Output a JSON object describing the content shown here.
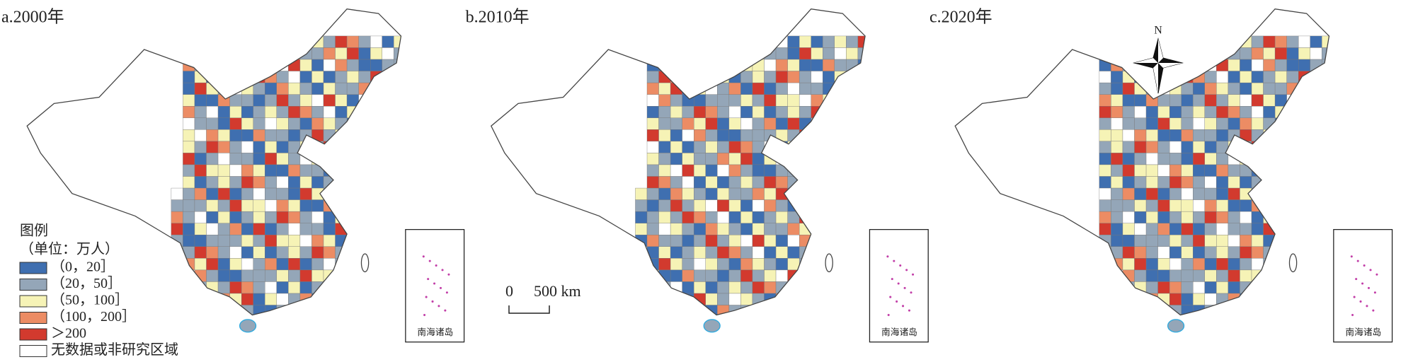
{
  "panels": [
    {
      "title": "a.2000年",
      "inset_label": "南海诸岛"
    },
    {
      "title": "b.2010年",
      "inset_label": "南海诸岛"
    },
    {
      "title": "c.2020年",
      "inset_label": "南海诸岛"
    }
  ],
  "legend": {
    "title": "图例",
    "unit": "（单位：万人）",
    "items": [
      {
        "label": "（0，20］",
        "color": "#3f6fb0"
      },
      {
        "label": "（20，50］",
        "color": "#94a6b8"
      },
      {
        "label": "（50，100］",
        "color": "#f6f3b6"
      },
      {
        "label": "（100，200］",
        "color": "#ec8c64"
      },
      {
        "label": "＞200",
        "color": "#d23a2e"
      },
      {
        "label": "无数据或非研究区域",
        "color": "#ffffff"
      }
    ]
  },
  "scale_bar": {
    "start": "0",
    "end": "500 km"
  },
  "north_arrow": "N"
}
